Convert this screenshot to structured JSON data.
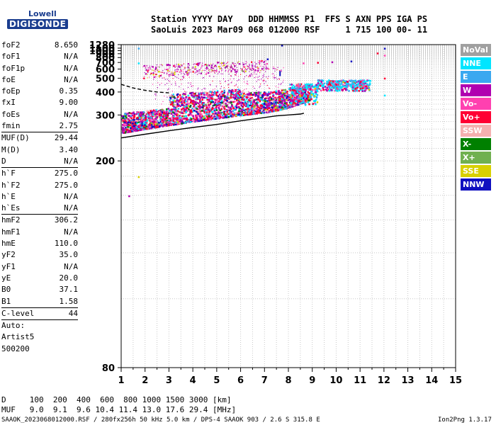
{
  "logo": {
    "line1": "Lowell",
    "line2": "DIGISONDE"
  },
  "header": {
    "row1": "Station YYYY DAY   DDD HHMMSS P1  FFS S AXN PPS IGA PS",
    "row2": "SaoLuis 2023 Mar09 068 012000 RSF     1 715 100 00- 11"
  },
  "params": [
    {
      "name": "foF2",
      "value": "8.650"
    },
    {
      "name": "foF1",
      "value": "N/A"
    },
    {
      "name": "foF1p",
      "value": "N/A"
    },
    {
      "name": "foE",
      "value": "N/A"
    },
    {
      "name": "foEp",
      "value": "0.35"
    },
    {
      "name": "fxI",
      "value": "9.00"
    },
    {
      "name": "foEs",
      "value": "N/A"
    },
    {
      "name": "fmin",
      "value": "2.75"
    },
    {
      "name": "MUF(D)",
      "value": "29.44",
      "rule_before": true
    },
    {
      "name": "M(D)",
      "value": "3.40"
    },
    {
      "name": "D",
      "value": "N/A"
    },
    {
      "name": "h`F",
      "value": "275.0",
      "rule_before": true
    },
    {
      "name": "h`F2",
      "value": "275.0"
    },
    {
      "name": "h`E",
      "value": "N/A"
    },
    {
      "name": "h`Es",
      "value": "N/A"
    },
    {
      "name": "hmF2",
      "value": "306.2",
      "rule_before": true
    },
    {
      "name": "hmF1",
      "value": "N/A"
    },
    {
      "name": "hmE",
      "value": "110.0"
    },
    {
      "name": "yF2",
      "value": "35.0"
    },
    {
      "name": "yF1",
      "value": "N/A"
    },
    {
      "name": "yE",
      "value": "20.0"
    },
    {
      "name": "B0",
      "value": "37.1"
    },
    {
      "name": "B1",
      "value": "1.58"
    },
    {
      "name": "C-level",
      "value": "44",
      "rule_before": true
    },
    {
      "name": "Auto:",
      "value": "",
      "rule_before": true
    },
    {
      "name": "Artist5",
      "value": ""
    },
    {
      "name": "500200",
      "value": ""
    }
  ],
  "legend": [
    {
      "label": "NoVal",
      "color": "#a0a0a0"
    },
    {
      "label": "NNE",
      "color": "#00e5ff"
    },
    {
      "label": "E",
      "color": "#3aa8f0"
    },
    {
      "label": "W",
      "color": "#b000b0"
    },
    {
      "label": "Vo-",
      "color": "#ff40b0"
    },
    {
      "label": "Vo+",
      "color": "#ff0033"
    },
    {
      "label": "SSW",
      "color": "#f5b0b0"
    },
    {
      "label": "X-",
      "color": "#008000"
    },
    {
      "label": "X+",
      "color": "#70b050"
    },
    {
      "label": "SSE",
      "color": "#d8d000"
    },
    {
      "label": "NNW",
      "color": "#1010c0"
    }
  ],
  "footer": {
    "d_row": "D     100  200  400  600  800 1000 1500 3000 [km]",
    "muf_row": "MUF   9.0  9.1  9.6 10.4 11.4 13.0 17.6 29.4 [MHz]",
    "file_row": "SAAOK_2023068012000.RSF / 280fx256h 50 kHz 5.0 km / DPS-4 SAAOK 903 / 2.6 S 315.8 E",
    "version": "Ion2Png 1.3.17"
  },
  "chart_data": {
    "type": "scatter",
    "title": "",
    "xlabel": "",
    "ylabel": "",
    "xlim": [
      1,
      15
    ],
    "ylim": [
      80,
      1280
    ],
    "y_scale": "reciprocal",
    "grid": true,
    "x_ticks": [
      "1",
      "2",
      "3",
      "4",
      "5",
      "6",
      "7",
      "8",
      "9",
      "10",
      "11",
      "12",
      "13",
      "14",
      "15"
    ],
    "y_ticks": [
      "80",
      "200",
      "300",
      "400",
      "500",
      "600",
      "700",
      "800",
      "900",
      "1000",
      "1100",
      "1280"
    ],
    "series": [
      {
        "name": "O-trace F region",
        "points": [
          [
            1.1,
            265
          ],
          [
            1.5,
            268
          ],
          [
            2,
            272
          ],
          [
            2.5,
            275
          ],
          [
            3,
            280
          ],
          [
            3.5,
            283
          ],
          [
            4,
            288
          ],
          [
            4.5,
            292
          ],
          [
            5,
            297
          ],
          [
            5.5,
            302
          ],
          [
            6,
            308
          ],
          [
            6.5,
            315
          ],
          [
            7,
            322
          ],
          [
            7.5,
            330
          ],
          [
            8,
            340
          ],
          [
            8.5,
            355
          ],
          [
            8.65,
            390
          ]
        ]
      },
      {
        "name": "Second-hop echoes",
        "points": [
          [
            2,
            510
          ],
          [
            2.5,
            520
          ],
          [
            3,
            540
          ],
          [
            3.5,
            560
          ],
          [
            4,
            580
          ],
          [
            4.5,
            600
          ],
          [
            5,
            610
          ],
          [
            6,
            640
          ],
          [
            7,
            650
          ]
        ]
      },
      {
        "name": "X-trace",
        "points": [
          [
            9.5,
            430
          ],
          [
            10,
            440
          ],
          [
            10.5,
            450
          ],
          [
            11,
            455
          ],
          [
            11.5,
            460
          ]
        ]
      }
    ],
    "profile_curves": [
      {
        "name": "Profile solid",
        "points": [
          [
            1,
            240
          ],
          [
            2,
            248
          ],
          [
            3,
            256
          ],
          [
            4,
            264
          ],
          [
            5,
            272
          ],
          [
            6,
            282
          ],
          [
            7,
            292
          ],
          [
            7.5,
            297
          ],
          [
            8,
            300
          ],
          [
            8.5,
            303
          ],
          [
            8.65,
            306
          ]
        ]
      },
      {
        "name": "Profile dashed",
        "points": [
          [
            1,
            450
          ],
          [
            1.5,
            425
          ],
          [
            2,
            410
          ],
          [
            2.5,
            400
          ],
          [
            3,
            395
          ]
        ]
      }
    ]
  }
}
